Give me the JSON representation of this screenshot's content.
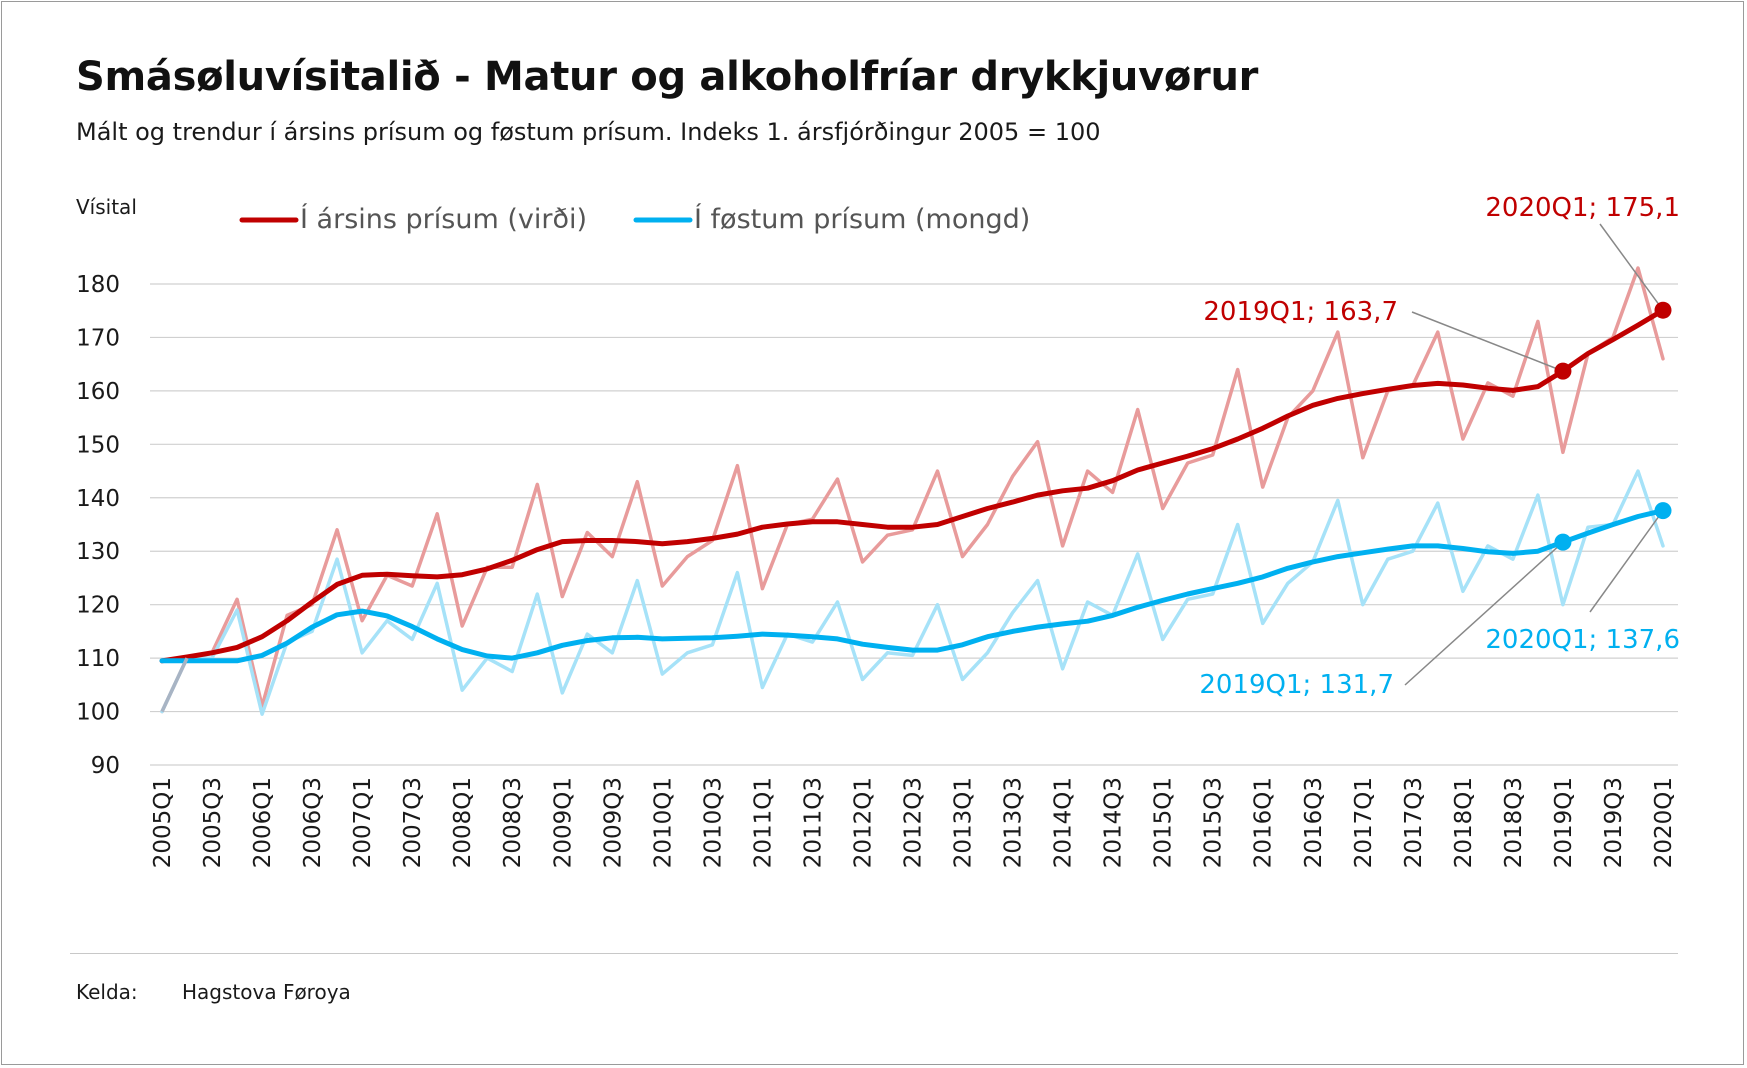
{
  "title": "Smásøluvísitalið - Matur og alkoholfríar drykkjuvørur",
  "subtitle": "Mált og trendur í ársins prísum og føstum prísum. Indeks 1. ársfjórðingur 2005 = 100",
  "source": {
    "label": "Kelda:",
    "value": "Hagstova Føroya"
  },
  "colors": {
    "nominal": "#c00000",
    "nominal_raw": "#e89b9b",
    "real": "#00b0f0",
    "real_raw": "#a6e2f8",
    "grid": "#d0d0d0",
    "text": "#1a1a1a",
    "leader": "#888888"
  },
  "chart_data": {
    "type": "line",
    "ylabel": "Vísital",
    "ylim": [
      90,
      180
    ],
    "yticks": [
      90,
      100,
      110,
      120,
      130,
      140,
      150,
      160,
      170,
      180
    ],
    "x_tick_labels": [
      "2005Q1",
      "2005Q3",
      "2006Q1",
      "2006Q3",
      "2007Q1",
      "2007Q3",
      "2008Q1",
      "2008Q3",
      "2009Q1",
      "2009Q3",
      "2010Q1",
      "2010Q3",
      "2011Q1",
      "2011Q3",
      "2012Q1",
      "2012Q3",
      "2013Q1",
      "2013Q3",
      "2014Q1",
      "2014Q3",
      "2015Q1",
      "2015Q3",
      "2016Q1",
      "2016Q3",
      "2017Q1",
      "2017Q3",
      "2018Q1",
      "2018Q3",
      "2019Q1",
      "2019Q3",
      "2020Q1"
    ],
    "quarters": [
      "2005Q1",
      "2005Q2",
      "2005Q3",
      "2005Q4",
      "2006Q1",
      "2006Q2",
      "2006Q3",
      "2006Q4",
      "2007Q1",
      "2007Q2",
      "2007Q3",
      "2007Q4",
      "2008Q1",
      "2008Q2",
      "2008Q3",
      "2008Q4",
      "2009Q1",
      "2009Q2",
      "2009Q3",
      "2009Q4",
      "2010Q1",
      "2010Q2",
      "2010Q3",
      "2010Q4",
      "2011Q1",
      "2011Q2",
      "2011Q3",
      "2011Q4",
      "2012Q1",
      "2012Q2",
      "2012Q3",
      "2012Q4",
      "2013Q1",
      "2013Q2",
      "2013Q3",
      "2013Q4",
      "2014Q1",
      "2014Q2",
      "2014Q3",
      "2014Q4",
      "2015Q1",
      "2015Q2",
      "2015Q3",
      "2015Q4",
      "2016Q1",
      "2016Q2",
      "2016Q3",
      "2016Q4",
      "2017Q1",
      "2017Q2",
      "2017Q3",
      "2017Q4",
      "2018Q1",
      "2018Q2",
      "2018Q3",
      "2018Q4",
      "2019Q1",
      "2019Q2",
      "2019Q3",
      "2019Q4",
      "2020Q1"
    ],
    "series": [
      {
        "name": "Í ársins prísum (virði) - mált",
        "role": "nominal_raw",
        "legend": false,
        "values": [
          100,
          110,
          111,
          121,
          101,
          118,
          120,
          134,
          117,
          125.5,
          123.5,
          137,
          116,
          127,
          127,
          142.5,
          121.5,
          133.5,
          129,
          143,
          123.5,
          129,
          132,
          146,
          123,
          135,
          136,
          143.5,
          128,
          133,
          134,
          145,
          129,
          135,
          144,
          150.5,
          131,
          145,
          141,
          156.5,
          138,
          146.5,
          148,
          164,
          142,
          155,
          160,
          171,
          147.5,
          160,
          161,
          171,
          151,
          161.5,
          159,
          173,
          148.5,
          167,
          170,
          183,
          166
        ]
      },
      {
        "name": "Í føstum prísum (mongd) - mált",
        "role": "real_raw",
        "legend": false,
        "values": [
          100,
          110,
          110,
          119,
          99.5,
          113,
          115,
          128.5,
          111,
          117,
          113.5,
          124,
          104,
          110,
          107.5,
          122,
          103.5,
          114.5,
          111,
          124.5,
          107,
          111,
          112.5,
          126,
          104.5,
          114.5,
          113,
          120.5,
          106,
          111,
          110.5,
          120,
          106,
          111,
          118.5,
          124.5,
          108,
          120.5,
          118,
          129.5,
          113.5,
          121,
          122,
          135,
          116.5,
          124,
          128,
          139.5,
          120,
          128.5,
          130,
          139,
          122.5,
          131,
          128.5,
          140.5,
          120,
          134.5,
          135,
          145,
          131
        ]
      },
      {
        "name": "Í ársins prísum (virði)",
        "role": "nominal",
        "legend": true,
        "values": [
          109.5,
          110.2,
          111,
          112,
          114,
          117,
          120.5,
          123.8,
          125.5,
          125.7,
          125.4,
          125.2,
          125.6,
          126.7,
          128.3,
          130.3,
          131.8,
          132,
          132,
          131.8,
          131.4,
          131.8,
          132.4,
          133.2,
          134.5,
          135.1,
          135.5,
          135.5,
          135,
          134.5,
          134.5,
          135,
          136.5,
          138,
          139.2,
          140.5,
          141.3,
          141.8,
          143.2,
          145.2,
          146.5,
          147.8,
          149.2,
          151,
          153,
          155.3,
          157.3,
          158.6,
          159.5,
          160.3,
          161,
          161.4,
          161.1,
          160.5,
          160.1,
          160.8,
          163.7,
          167,
          169.6,
          172.3,
          175.1
        ]
      },
      {
        "name": "Í føstum prísum (mongd)",
        "role": "real",
        "legend": true,
        "values": [
          109.5,
          109.5,
          109.5,
          109.5,
          110.5,
          112.8,
          115.8,
          118.1,
          118.8,
          117.9,
          115.9,
          113.6,
          111.6,
          110.4,
          110,
          111,
          112.4,
          113.3,
          113.8,
          113.9,
          113.6,
          113.7,
          113.8,
          114.1,
          114.5,
          114.3,
          114,
          113.6,
          112.6,
          112,
          111.5,
          111.5,
          112.5,
          114,
          115,
          115.8,
          116.4,
          116.9,
          118,
          119.5,
          120.8,
          122,
          123,
          124,
          125.2,
          126.8,
          128,
          129,
          129.7,
          130.4,
          131,
          131,
          130.5,
          129.9,
          129.6,
          130,
          131.7,
          133.4,
          135,
          136.5,
          137.6
        ]
      }
    ],
    "annotations": [
      {
        "text": "2020Q1; 175,1",
        "series": "nominal",
        "quarter": "2020Q1",
        "value": 175.1
      },
      {
        "text": "2019Q1; 163,7",
        "series": "nominal",
        "quarter": "2019Q1",
        "value": 163.7
      },
      {
        "text": "2019Q1; 131,7",
        "series": "real",
        "quarter": "2019Q1",
        "value": 131.7
      },
      {
        "text": "2020Q1; 137,6",
        "series": "real",
        "quarter": "2020Q1",
        "value": 137.6
      }
    ]
  }
}
